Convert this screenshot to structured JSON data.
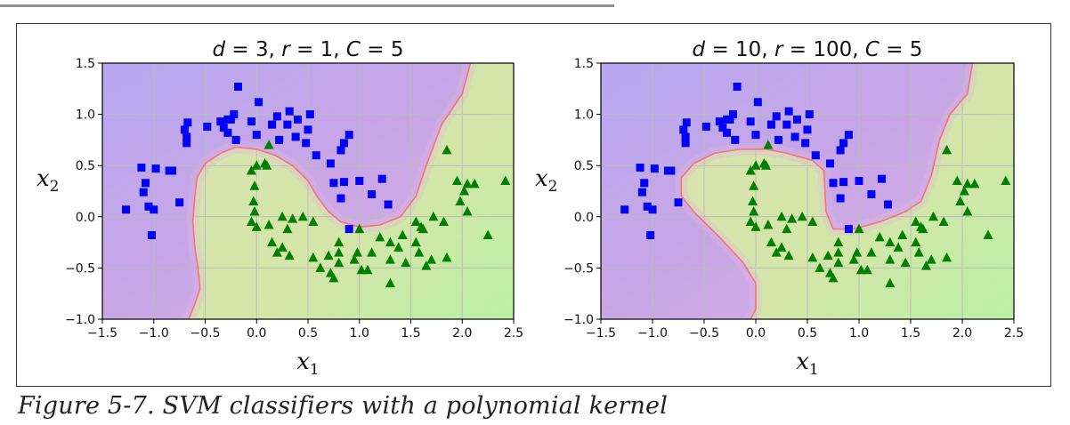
{
  "caption": "Figure 5-7. SVM classifiers with a polynomial kernel",
  "colors": {
    "square": "#0000ff",
    "triangle": "#008000",
    "region_neg": "#c9a6e6",
    "region_pos": "#cfe3a6",
    "boundary": "#ff6060",
    "grid": "#bbbbbb",
    "frame": "#000000"
  },
  "chart_data": [
    {
      "type": "scatter",
      "title": "d = 3, r = 1, C = 5",
      "title_parts": [
        "d",
        " = 3, ",
        "r",
        " = 1, ",
        "C",
        " = 5"
      ],
      "xlabel": "x1",
      "ylabel": "x2",
      "xlim": [
        -1.5,
        2.5
      ],
      "ylim": [
        -1.0,
        1.5
      ],
      "xticks": [
        "−1.5",
        "−1.0",
        "−0.5",
        "0.0",
        "0.5",
        "1.0",
        "1.5",
        "2.0",
        "2.5"
      ],
      "yticks": [
        "−1.0",
        "−0.5",
        "0.0",
        "0.5",
        "1.0",
        "1.5"
      ],
      "grid": true,
      "boundary": [
        [
          -0.66,
          -1.0
        ],
        [
          -0.6,
          -0.85
        ],
        [
          -0.55,
          -0.7
        ],
        [
          -0.57,
          -0.5
        ],
        [
          -0.6,
          -0.3
        ],
        [
          -0.62,
          -0.05
        ],
        [
          -0.6,
          0.2
        ],
        [
          -0.58,
          0.38
        ],
        [
          -0.5,
          0.52
        ],
        [
          -0.35,
          0.62
        ],
        [
          -0.2,
          0.68
        ],
        [
          0.0,
          0.66
        ],
        [
          0.18,
          0.6
        ],
        [
          0.35,
          0.5
        ],
        [
          0.5,
          0.35
        ],
        [
          0.6,
          0.18
        ],
        [
          0.7,
          0.05
        ],
        [
          0.82,
          -0.05
        ],
        [
          1.0,
          -0.1
        ],
        [
          1.2,
          -0.08
        ],
        [
          1.4,
          0.0
        ],
        [
          1.55,
          0.2
        ],
        [
          1.65,
          0.5
        ],
        [
          1.8,
          0.9
        ],
        [
          2.0,
          1.2
        ],
        [
          2.08,
          1.5
        ]
      ]
    },
    {
      "type": "scatter",
      "title": "d = 10, r = 100, C = 5",
      "title_parts": [
        "d",
        " = 10, ",
        "r",
        " = 100, ",
        "C",
        " = 5"
      ],
      "xlabel": "x1",
      "ylabel": "x2",
      "xlim": [
        -1.5,
        2.5
      ],
      "ylim": [
        -1.0,
        1.5
      ],
      "xticks": [
        "−1.5",
        "−1.0",
        "−0.5",
        "0.0",
        "0.5",
        "1.0",
        "1.5",
        "2.0",
        "2.5"
      ],
      "yticks": [
        "−1.0",
        "−0.5",
        "0.0",
        "0.5",
        "1.0",
        "1.5"
      ],
      "grid": true,
      "boundary": [
        [
          -0.05,
          -1.0
        ],
        [
          0.0,
          -0.9
        ],
        [
          0.0,
          -0.65
        ],
        [
          -0.12,
          -0.45
        ],
        [
          -0.35,
          -0.2
        ],
        [
          -0.6,
          0.05
        ],
        [
          -0.72,
          0.2
        ],
        [
          -0.72,
          0.38
        ],
        [
          -0.6,
          0.52
        ],
        [
          -0.4,
          0.62
        ],
        [
          -0.15,
          0.66
        ],
        [
          0.1,
          0.66
        ],
        [
          0.3,
          0.62
        ],
        [
          0.55,
          0.55
        ],
        [
          0.66,
          0.45
        ],
        [
          0.68,
          0.05
        ],
        [
          0.75,
          -0.12
        ],
        [
          0.95,
          -0.12
        ],
        [
          1.2,
          -0.05
        ],
        [
          1.45,
          0.05
        ],
        [
          1.6,
          0.15
        ],
        [
          1.7,
          0.4
        ],
        [
          1.78,
          0.75
        ],
        [
          1.88,
          1.0
        ],
        [
          2.05,
          1.2
        ],
        [
          2.1,
          1.5
        ]
      ]
    }
  ],
  "squares": [
    [
      -1.27,
      0.07
    ],
    [
      -1.12,
      0.48
    ],
    [
      -1.1,
      0.24
    ],
    [
      -1.08,
      0.33
    ],
    [
      -1.05,
      0.1
    ],
    [
      -1.02,
      -0.18
    ],
    [
      -1.0,
      0.07
    ],
    [
      -0.98,
      0.47
    ],
    [
      -0.85,
      0.45
    ],
    [
      -0.82,
      0.45
    ],
    [
      -0.75,
      0.14
    ],
    [
      -0.7,
      0.85
    ],
    [
      -0.68,
      0.78
    ],
    [
      -0.68,
      0.72
    ],
    [
      -0.67,
      0.92
    ],
    [
      -0.48,
      0.88
    ],
    [
      -0.35,
      0.93
    ],
    [
      -0.32,
      0.87
    ],
    [
      -0.28,
      0.95
    ],
    [
      -0.28,
      0.82
    ],
    [
      -0.25,
      0.95
    ],
    [
      -0.22,
      1.0
    ],
    [
      -0.2,
      0.75
    ],
    [
      -0.18,
      1.27
    ],
    [
      -0.05,
      0.93
    ],
    [
      0.0,
      0.8
    ],
    [
      0.02,
      1.12
    ],
    [
      0.15,
      0.9
    ],
    [
      0.2,
      0.98
    ],
    [
      0.22,
      0.75
    ],
    [
      0.3,
      0.9
    ],
    [
      0.32,
      1.03
    ],
    [
      0.38,
      0.78
    ],
    [
      0.4,
      0.95
    ],
    [
      0.48,
      0.72
    ],
    [
      0.5,
      0.85
    ],
    [
      0.52,
      1.0
    ],
    [
      0.58,
      0.6
    ],
    [
      0.72,
      0.52
    ],
    [
      0.75,
      0.33
    ],
    [
      0.82,
      0.65
    ],
    [
      0.85,
      0.34
    ],
    [
      0.85,
      0.72
    ],
    [
      0.9,
      0.8
    ],
    [
      1.0,
      0.35
    ],
    [
      1.12,
      0.22
    ],
    [
      1.22,
      0.37
    ],
    [
      1.28,
      0.12
    ],
    [
      0.82,
      0.18
    ],
    [
      0.9,
      -0.12
    ]
  ],
  "triangles": [
    [
      0.12,
      0.7
    ],
    [
      0.0,
      0.5
    ],
    [
      0.08,
      0.52
    ],
    [
      0.1,
      0.5
    ],
    [
      -0.05,
      0.45
    ],
    [
      -0.02,
      0.3
    ],
    [
      -0.03,
      0.15
    ],
    [
      -0.02,
      0.05
    ],
    [
      0.0,
      -0.1
    ],
    [
      -0.05,
      -0.05
    ],
    [
      0.12,
      -0.08
    ],
    [
      0.15,
      -0.25
    ],
    [
      0.25,
      0.0
    ],
    [
      0.2,
      -0.35
    ],
    [
      0.25,
      -0.3
    ],
    [
      0.3,
      -0.12
    ],
    [
      0.32,
      -0.38
    ],
    [
      0.35,
      -0.02
    ],
    [
      0.45,
      0.0
    ],
    [
      0.55,
      -0.05
    ],
    [
      0.55,
      -0.4
    ],
    [
      0.62,
      -0.5
    ],
    [
      0.7,
      -0.38
    ],
    [
      0.72,
      -0.55
    ],
    [
      0.75,
      -0.6
    ],
    [
      0.8,
      -0.35
    ],
    [
      0.8,
      -0.25
    ],
    [
      0.8,
      -0.45
    ],
    [
      0.95,
      -0.42
    ],
    [
      0.98,
      -0.35
    ],
    [
      1.0,
      -0.12
    ],
    [
      1.02,
      -0.52
    ],
    [
      1.08,
      -0.52
    ],
    [
      1.12,
      -0.35
    ],
    [
      1.2,
      -0.2
    ],
    [
      1.3,
      -0.25
    ],
    [
      1.3,
      -0.42
    ],
    [
      1.3,
      -0.65
    ],
    [
      1.38,
      -0.3
    ],
    [
      1.42,
      -0.18
    ],
    [
      1.45,
      -0.45
    ],
    [
      1.55,
      -0.05
    ],
    [
      1.55,
      -0.25
    ],
    [
      1.58,
      -0.35
    ],
    [
      1.6,
      -0.1
    ],
    [
      1.62,
      -0.12
    ],
    [
      1.65,
      -0.48
    ],
    [
      1.7,
      -0.42
    ],
    [
      1.72,
      0.0
    ],
    [
      1.82,
      -0.05
    ],
    [
      1.85,
      -0.4
    ],
    [
      1.85,
      0.65
    ],
    [
      1.95,
      0.35
    ],
    [
      1.98,
      0.15
    ],
    [
      2.02,
      0.25
    ],
    [
      2.05,
      0.32
    ],
    [
      2.05,
      0.05
    ],
    [
      2.12,
      0.32
    ],
    [
      2.25,
      -0.18
    ],
    [
      2.42,
      0.35
    ]
  ]
}
